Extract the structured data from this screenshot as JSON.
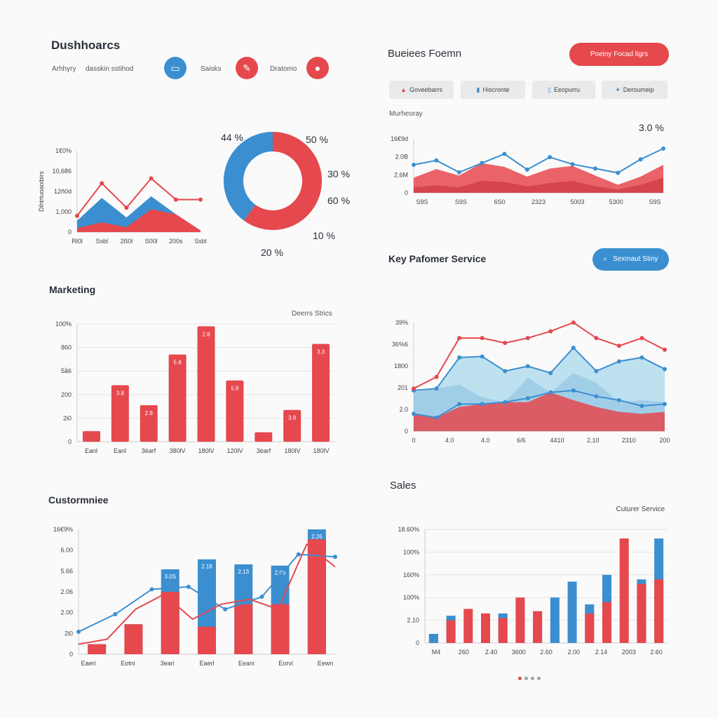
{
  "header": {
    "title": "Dushhoarcs",
    "nav": [
      "Arhhyry",
      "dasskin sstihod"
    ],
    "icons": [
      {
        "name": "briefcase-icon",
        "glyph": "▭",
        "color": "#3b8fd0",
        "label": "Saisks"
      },
      {
        "name": "chart-pen-icon",
        "glyph": "✎",
        "color": "#e5484d",
        "label": "Dratomo"
      },
      {
        "name": "user-icon",
        "glyph": "●",
        "color": "#e5484d",
        "label": ""
      }
    ]
  },
  "business": {
    "title": "Bueiees Foemn",
    "button": "Poeiny Focad ligrs",
    "tabs": [
      {
        "icon": "▲",
        "label": "Goveebarrs"
      },
      {
        "icon": "▮",
        "label": "Hiscronte"
      },
      {
        "icon": "▯",
        "label": "Eeopurru"
      },
      {
        "icon": "✦",
        "label": "Deroumeip"
      }
    ],
    "sublabel": "Murheoray"
  },
  "key_section": {
    "title": "Key Pafomer Service",
    "button": "Sexmaut Stiny"
  },
  "marketing": {
    "title": "Marketing",
    "legend": "Deerrs Strics"
  },
  "customer": {
    "title": "Custormniee"
  },
  "sales": {
    "title": "Sales",
    "legend": "Cuturer Service"
  },
  "colors": {
    "blue": "#3b8fd0",
    "red": "#e5484d",
    "lightblue": "#a9d8ec"
  },
  "chart_data": [
    {
      "id": "area-small",
      "type": "area",
      "ylabel": "Dihtrtuoaoibirs",
      "y_ticks": [
        "1€0%",
        "10,686",
        "12ñ0d",
        "1,000",
        "0"
      ],
      "x_ticks": [
        "Rl0l",
        "Ssbl",
        "2ß0l",
        "S00l",
        "200s",
        "Ssbl"
      ],
      "ylim": [
        0,
        100
      ],
      "x": [
        0,
        1,
        2,
        3,
        4,
        5
      ],
      "series": [
        {
          "values": [
            14,
            42,
            18,
            44,
            22,
            2
          ]
        },
        {
          "values": [
            5,
            12,
            6,
            28,
            22,
            2
          ]
        },
        {
          "values": [
            20,
            60,
            30,
            66,
            40,
            40
          ]
        }
      ]
    },
    {
      "id": "donut",
      "type": "pie",
      "labels": [
        "44 %",
        "50 %",
        "30 %",
        "60 %",
        "10 %",
        "20 %"
      ],
      "slices": [
        {
          "value": 40
        },
        {
          "value": 60
        }
      ]
    },
    {
      "id": "business-area",
      "type": "area",
      "annotation": "3.0 %",
      "y_ticks": [
        "16€9d",
        "2.0B",
        "2.6M",
        "0"
      ],
      "x_ticks": [
        "S9S",
        "S9S",
        "6S0",
        "2323",
        "5003",
        "5300",
        "S9S"
      ],
      "ylim": [
        0,
        100
      ],
      "x": [
        0,
        1,
        2,
        3,
        4,
        5,
        6,
        7,
        8,
        9,
        10,
        11
      ],
      "series": [
        {
          "values": [
            28,
            44,
            32,
            55,
            48,
            30,
            45,
            50,
            32,
            15,
            30,
            52
          ]
        },
        {
          "values": [
            10,
            14,
            10,
            22,
            20,
            12,
            18,
            22,
            12,
            6,
            15,
            28
          ]
        },
        {
          "values": [
            52,
            60,
            38,
            55,
            72,
            43,
            66,
            53,
            45,
            37,
            62,
            82
          ]
        }
      ]
    },
    {
      "id": "marketing-bars",
      "type": "bar",
      "y_ticks": [
        "100%",
        "860",
        "5å6",
        "200",
        "2i0",
        "0"
      ],
      "x_ticks": [
        "Eanl",
        "Eanl",
        "3èarf",
        "380lV",
        "180lV",
        "120lV",
        "3èarf",
        "180lV",
        "180lV"
      ],
      "ylim": [
        0,
        100
      ],
      "series": [
        {
          "values": [
            9,
            48,
            31,
            74,
            98,
            52,
            8,
            27,
            83
          ],
          "labels": [
            "",
            "3.8",
            "2.8",
            "5.8",
            "2.8",
            "5.8",
            "",
            "3.8",
            "3.3"
          ]
        }
      ]
    },
    {
      "id": "key-area",
      "type": "area",
      "y_ticks": [
        "39%",
        "36%6",
        "1800",
        "201",
        "2.0",
        "0"
      ],
      "x_ticks": [
        "0",
        "4.0",
        "4.0",
        "6/6",
        "4410",
        "2.10",
        "2310",
        "200"
      ],
      "ylim": [
        0,
        100
      ],
      "x": [
        0,
        1,
        2,
        3,
        4,
        5,
        6,
        7,
        8,
        9,
        10,
        11
      ],
      "series": [
        {
          "values": [
            40,
            44,
            48,
            35,
            30,
            55,
            40,
            60,
            50,
            30,
            32,
            30
          ]
        },
        {
          "values": [
            18,
            14,
            25,
            28,
            30,
            30,
            40,
            32,
            25,
            20,
            18,
            20
          ]
        },
        {
          "values": [
            42,
            44,
            76,
            77,
            62,
            67,
            60,
            86,
            62,
            72,
            76,
            64
          ]
        },
        {
          "values": [
            18,
            14,
            28,
            28,
            30,
            34,
            40,
            42,
            36,
            32,
            26,
            28
          ]
        },
        {
          "values": [
            44,
            56,
            96,
            96,
            91,
            96,
            103,
            112,
            96,
            88,
            96,
            84
          ]
        }
      ]
    },
    {
      "id": "customer-combo",
      "type": "bar",
      "y_ticks": [
        "16€9%",
        "6.00",
        "5.66",
        "2.06",
        "2.00",
        "2i0",
        "0"
      ],
      "x_ticks": [
        "Eaeri",
        "Eotni",
        "3eari",
        "Eaerl",
        "Eeani",
        "Eorvi",
        "Eewn"
      ],
      "ylim": [
        0,
        100
      ],
      "series": [
        {
          "values": [
            8,
            24,
            68,
            76,
            72,
            71,
            100
          ],
          "labels": [
            "",
            "",
            "3.0S",
            "2.18",
            "2.13",
            "2.08",
            "2.26"
          ]
        },
        {
          "values": [
            8,
            24,
            50,
            22,
            40,
            40,
            92
          ]
        },
        {
          "values": [
            18,
            32,
            52,
            54,
            36,
            46,
            80,
            78
          ]
        },
        {
          "values": [
            8,
            12,
            36,
            48,
            28,
            40,
            44,
            36,
            88,
            70
          ]
        }
      ]
    },
    {
      "id": "sales-bars",
      "type": "bar",
      "legend": "Cuturer Service",
      "y_ticks": [
        "18.60%",
        "100%",
        "160%",
        "100%",
        "2.10",
        "0"
      ],
      "x_ticks": [
        "M4",
        "260",
        "2.40",
        "3600",
        "2.60",
        "2.00",
        "2.14",
        "2003",
        "2.60"
      ],
      "ylim": [
        0,
        100
      ],
      "series": [
        {
          "values": [
            8,
            24,
            30,
            20,
            26,
            40,
            20,
            16,
            54,
            34,
            60,
            92,
            56,
            92
          ]
        },
        {
          "values": [
            8,
            20,
            0,
            26,
            22,
            0,
            28,
            40,
            0,
            26,
            36,
            0,
            52,
            56
          ]
        }
      ]
    }
  ]
}
